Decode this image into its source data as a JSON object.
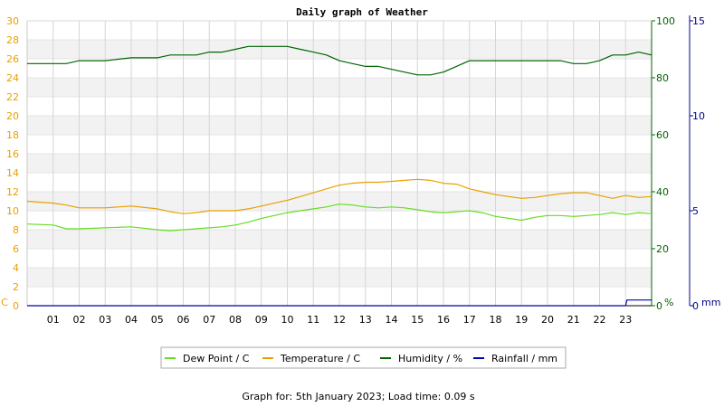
{
  "chart_data": {
    "type": "line",
    "title": "Daily graph of Weather",
    "footer": "Graph for: 5th January 2023; Load time: 0.09 s",
    "x_ticks": [
      "01",
      "02",
      "03",
      "04",
      "05",
      "06",
      "07",
      "08",
      "09",
      "10",
      "11",
      "12",
      "13",
      "14",
      "15",
      "16",
      "17",
      "18",
      "19",
      "20",
      "21",
      "22",
      "23"
    ],
    "x_range": [
      0,
      24
    ],
    "grid": true,
    "legend_position": "bottom-center",
    "axes": {
      "temp": {
        "unit_label": "C",
        "range": [
          0,
          30
        ],
        "ticks": [
          "0",
          "2",
          "4",
          "6",
          "8",
          "10",
          "12",
          "14",
          "16",
          "18",
          "20",
          "22",
          "24",
          "26",
          "28",
          "30"
        ],
        "color": "#e8a000",
        "side": "left"
      },
      "humidity": {
        "unit_label": "%",
        "range": [
          0,
          100
        ],
        "ticks": [
          "0",
          "20",
          "40",
          "60",
          "80",
          "100"
        ],
        "color": "#006400",
        "side": "right"
      },
      "rain": {
        "unit_label": "mm",
        "range": [
          0,
          15
        ],
        "ticks": [
          "0",
          "5",
          "10",
          "15"
        ],
        "color": "#00008b",
        "side": "right-outer"
      }
    },
    "series": [
      {
        "name": "Dew Point / C",
        "axis": "temp",
        "color": "#66dd22",
        "x": [
          0,
          1,
          1.5,
          2,
          3,
          4,
          5,
          5.5,
          6,
          6.5,
          7,
          7.5,
          8,
          8.5,
          9,
          9.5,
          10,
          10.5,
          11,
          11.5,
          12,
          12.5,
          13,
          13.5,
          14,
          14.5,
          15,
          15.5,
          16,
          16.5,
          17,
          17.5,
          18,
          18.5,
          19,
          19.5,
          20,
          20.5,
          21,
          21.5,
          22,
          22.5,
          23,
          23.5,
          24
        ],
        "values": [
          8.6,
          8.5,
          8.1,
          8.1,
          8.2,
          8.3,
          8.0,
          7.9,
          8.0,
          8.1,
          8.2,
          8.3,
          8.5,
          8.8,
          9.2,
          9.5,
          9.8,
          10.0,
          10.2,
          10.4,
          10.7,
          10.6,
          10.4,
          10.3,
          10.4,
          10.3,
          10.1,
          9.9,
          9.8,
          9.9,
          10.0,
          9.8,
          9.4,
          9.2,
          9.0,
          9.3,
          9.5,
          9.5,
          9.4,
          9.5,
          9.6,
          9.8,
          9.6,
          9.8,
          9.7
        ]
      },
      {
        "name": "Temperature / C",
        "axis": "temp",
        "color": "#e8a000",
        "x": [
          0,
          1,
          1.5,
          2,
          3,
          4,
          5,
          5.5,
          6,
          6.5,
          7,
          7.5,
          8,
          8.5,
          9,
          9.5,
          10,
          10.5,
          11,
          11.5,
          12,
          12.5,
          13,
          13.5,
          14,
          14.5,
          15,
          15.5,
          16,
          16.5,
          17,
          17.5,
          18,
          18.5,
          19,
          19.5,
          20,
          20.5,
          21,
          21.5,
          22,
          22.5,
          23,
          23.5,
          24
        ],
        "values": [
          11.0,
          10.8,
          10.6,
          10.3,
          10.3,
          10.5,
          10.2,
          9.9,
          9.7,
          9.8,
          10.0,
          10.0,
          10.0,
          10.2,
          10.5,
          10.8,
          11.1,
          11.5,
          11.9,
          12.3,
          12.7,
          12.9,
          13.0,
          13.0,
          13.1,
          13.2,
          13.3,
          13.2,
          12.9,
          12.8,
          12.3,
          12.0,
          11.7,
          11.5,
          11.3,
          11.4,
          11.6,
          11.8,
          11.9,
          11.9,
          11.6,
          11.3,
          11.6,
          11.4,
          11.5
        ]
      },
      {
        "name": "Humidity / %",
        "axis": "humidity",
        "color": "#006400",
        "x": [
          0,
          1,
          1.5,
          2,
          3,
          4,
          5,
          5.5,
          6,
          6.5,
          7,
          7.5,
          8,
          8.5,
          9,
          9.5,
          10,
          10.5,
          11,
          11.5,
          12,
          12.5,
          13,
          13.5,
          14,
          14.5,
          15,
          15.5,
          16,
          16.5,
          17,
          17.5,
          18,
          18.5,
          19,
          19.5,
          20,
          20.5,
          21,
          21.5,
          22,
          22.5,
          23,
          23.5,
          24
        ],
        "values": [
          85,
          85,
          85,
          86,
          86,
          87,
          87,
          88,
          88,
          88,
          89,
          89,
          90,
          91,
          91,
          91,
          91,
          90,
          89,
          88,
          86,
          85,
          84,
          84,
          83,
          82,
          81,
          81,
          82,
          84,
          86,
          86,
          86,
          86,
          86,
          86,
          86,
          86,
          85,
          85,
          86,
          88,
          88,
          89,
          88
        ]
      },
      {
        "name": "Rainfall / mm",
        "axis": "rain",
        "color": "#0000aa",
        "x": [
          0,
          23.0,
          23.05,
          24
        ],
        "values": [
          0,
          0,
          0.3,
          0.3
        ]
      }
    ]
  }
}
